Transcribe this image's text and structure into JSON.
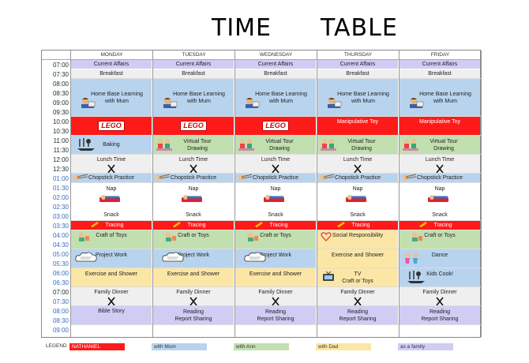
{
  "title_left": "TIME",
  "title_right": "TABLE",
  "days": [
    "MONDAY",
    "TUESDAY",
    "WEDNESDAY",
    "THURSDAY",
    "FRIDAY"
  ],
  "times": [
    "07:00",
    "07:30",
    "08:00",
    "08:30",
    "09:00",
    "09:30",
    "10:00",
    "10:30",
    "11:00",
    "11:30",
    "12:00",
    "12:30",
    "01:00",
    "01:30",
    "02:00",
    "02:30",
    "03:00",
    "03:30",
    "04:00",
    "04:30",
    "05:00",
    "05:30",
    "06:00",
    "06:30",
    "07:00",
    "07:30",
    "08:00",
    "08:30",
    "09:00"
  ],
  "activities": {
    "current_affairs": "Current Affairs",
    "breakfast": "Breakfast",
    "home_learning_1": "Home Base Learning",
    "home_learning_2": "with Mum",
    "lego": "LEGO",
    "manipulative_toy": "Manipulative Toy",
    "baking": "Baking",
    "virtual_tour": "Virtual Tour",
    "drawing": "Drawing",
    "lunch_time": "Lunch Time",
    "chopstick_practice": "Chopstick Practice",
    "nap": "Nap",
    "snack": "Snack",
    "tracing": "Tracing",
    "craft_of_toys": "Craft of Toys",
    "craft_or_toys": "Craft or Toys",
    "social_responsibility": "Social Responsibility",
    "project_work": "Project Work",
    "exercise_and_shower": "Exercise and Shower",
    "dance": "Dance",
    "tv": "TV",
    "kids_cook": "Kids Cook!",
    "family_dinner": "Family Dinner",
    "bible_story": "Bible Story",
    "reading": "Reading",
    "report_sharing": "Report Sharing"
  },
  "legend": {
    "label": "LEGEND",
    "items": [
      {
        "label": "NATHANIEL",
        "color": "#ff1a1a"
      },
      {
        "label": "with Mum",
        "color": "#b8d3ee"
      },
      {
        "label": "with Ann",
        "color": "#c2dfb0"
      },
      {
        "label": "with Dad",
        "color": "#fbe6a6"
      },
      {
        "label": "as a family",
        "color": "#cfcdf4"
      }
    ]
  },
  "colors": {
    "family": "#cfcdf4",
    "mum": "#b8d3ee",
    "ann": "#c2dfb0",
    "dad": "#fbe6a6",
    "nathaniel": "#ff1a1a",
    "grey": "#efefef"
  }
}
